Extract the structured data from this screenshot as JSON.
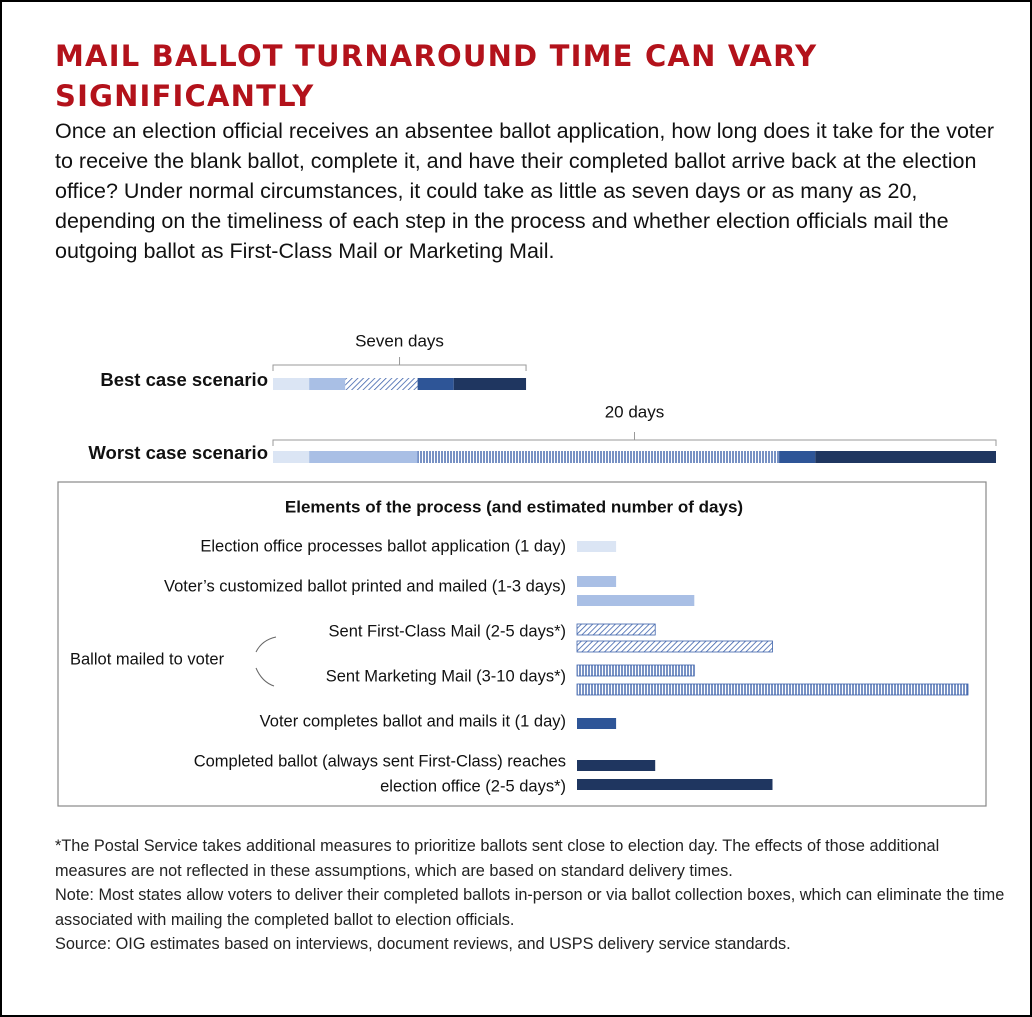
{
  "title": "MAIL BALLOT TURNAROUND TIME CAN VARY SIGNIFICANTLY",
  "description": "Once an election official receives an absentee ballot application, how long does it take for the voter to receive the blank ballot, complete it, and have their completed ballot arrive back at the election office? Under normal circumstances, it could take as little as seven days or as many as 20, depending on the timeliness of each step in the process and whether election officials mail the outgoing ballot as First-Class Mail or Marketing Mail.",
  "chart_data": {
    "type": "stacked_bar",
    "categories": [
      "Best case scenario",
      "Worst case scenario"
    ],
    "annotations": [
      "Seven days",
      "20 days"
    ],
    "series": [
      {
        "color": "#dbe5f4",
        "values": [
          1,
          1
        ]
      },
      {
        "color": "#a9bfe5",
        "values": [
          1,
          3
        ]
      },
      {
        "color": "#3d62ab",
        "patterns": [
          "diagonal",
          "vertical"
        ],
        "values": [
          2,
          10
        ]
      },
      {
        "color": "#2e5597",
        "values": [
          1,
          1
        ]
      },
      {
        "color": "#1f3660",
        "values": [
          2,
          5
        ]
      }
    ]
  },
  "elements": {
    "title": "Elements of the process (and estimated number of days)",
    "group_label": "Ballot mailed to voter",
    "items": [
      {
        "label": "Election office processes ballot application (1 day)",
        "values": [
          1
        ],
        "color": "#dbe5f4"
      },
      {
        "label": "Voter’s customized ballot printed and mailed (1-3 days)",
        "values": [
          1,
          3
        ],
        "color": "#a9bfe5"
      },
      {
        "label": "Sent First-Class Mail (2-5 days*)",
        "values": [
          2,
          5
        ],
        "pattern": "diagonal"
      },
      {
        "label": "Sent Marketing Mail (3-10 days*)",
        "values": [
          3,
          10
        ],
        "pattern": "vertical"
      },
      {
        "label": "Voter completes ballot and mails it (1 day)",
        "values": [
          1
        ],
        "color": "#2e5597"
      },
      {
        "label_lines": [
          "Completed ballot (always sent First-Class) reaches",
          "election office (2-5 days*)"
        ],
        "values": [
          2,
          5
        ],
        "color": "#1f3660"
      }
    ]
  },
  "notes": [
    "*The Postal Service takes additional measures to prioritize ballots sent close to election day. The effects of those additional measures are not reflected in these assumptions, which are based on standard delivery times.",
    "Note: Most states allow voters to deliver their completed ballots in-person or via ballot collection boxes, which can eliminate the time associated with mailing the completed ballot to election officials.",
    "Source: OIG estimates based on interviews, document reviews, and USPS delivery service standards."
  ]
}
